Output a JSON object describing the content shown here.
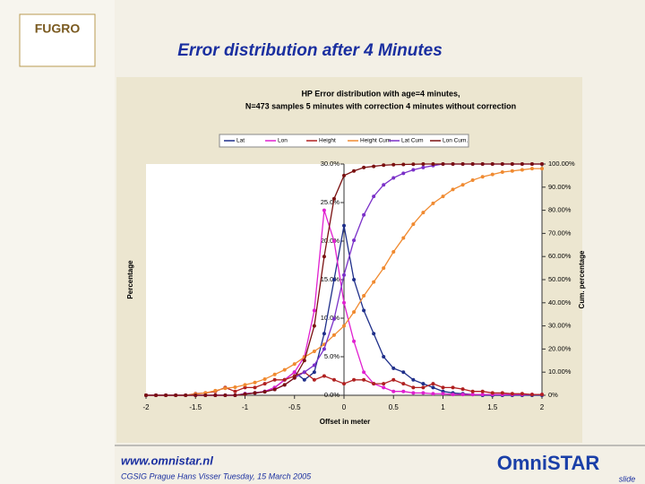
{
  "slide": {
    "title": "Error distribution after 4 Minutes",
    "logo": "FUGRO",
    "brand": "OmniSTAR",
    "url": "www.omnistar.nl",
    "footer": "CGSIG Prague Hans Visser Tuesday, 15 March 2005",
    "slide_label": "slide"
  },
  "chart_data": {
    "type": "line",
    "title": "HP Error distribution with age=4 minutes,",
    "subtitle": "N=473 samples 5 minutes with correction 4 minutes without correction",
    "x_label": "Offset in meter",
    "y_label": "Percentage",
    "y2_label": "Cum. percentage",
    "x": [
      -2,
      -1.9,
      -1.8,
      -1.7,
      -1.6,
      -1.5,
      -1.4,
      -1.3,
      -1.2,
      -1.1,
      -1,
      -0.9,
      -0.8,
      -0.7,
      -0.6,
      -0.5,
      -0.4,
      -0.3,
      -0.2,
      -0.1,
      0,
      0.1,
      0.2,
      0.3,
      0.4,
      0.5,
      0.6,
      0.7,
      0.8,
      0.9,
      1,
      1.1,
      1.2,
      1.3,
      1.4,
      1.5,
      1.6,
      1.7,
      1.8,
      1.9,
      2
    ],
    "xlim": [
      -2,
      2
    ],
    "xticks": [
      -2,
      -1.5,
      -1,
      -0.5,
      0,
      0.5,
      1,
      1.5,
      2
    ],
    "ylim": [
      0,
      30
    ],
    "yticks": [
      {
        "value": 0,
        "label": "0.0%"
      },
      {
        "value": 5,
        "label": "5.0%"
      },
      {
        "value": 10,
        "label": "10.0%"
      },
      {
        "value": 15,
        "label": "15.0%"
      },
      {
        "value": 20,
        "label": "20.0%"
      },
      {
        "value": 25,
        "label": "25.0%"
      },
      {
        "value": 30,
        "label": "30.0%"
      }
    ],
    "y2lim": [
      0,
      100
    ],
    "y2ticks": [
      {
        "value": 0,
        "label": "0%"
      },
      {
        "value": 10,
        "label": "10.00%"
      },
      {
        "value": 20,
        "label": "20.00%"
      },
      {
        "value": 30,
        "label": "30.00%"
      },
      {
        "value": 40,
        "label": "40.00%"
      },
      {
        "value": 50,
        "label": "50.00%"
      },
      {
        "value": 60,
        "label": "60.00%"
      },
      {
        "value": 70,
        "label": "70.00%"
      },
      {
        "value": 80,
        "label": "80.00%"
      },
      {
        "value": 90,
        "label": "90.00%"
      },
      {
        "value": 100,
        "label": "100.00%"
      }
    ],
    "legend": "top",
    "series": [
      {
        "name": "Lat",
        "color": "#1f2f8a",
        "values": [
          0,
          0,
          0,
          0,
          0,
          0,
          0,
          0,
          0,
          0,
          0.2,
          0.3,
          0.5,
          1,
          2,
          3,
          2,
          3,
          8,
          15,
          22,
          15,
          11,
          8,
          5,
          3.5,
          3,
          2,
          1.5,
          1,
          0.5,
          0.3,
          0.2,
          0.1,
          0,
          0,
          0,
          0,
          0,
          0,
          0
        ]
      },
      {
        "name": "Lon",
        "color": "#e020d0",
        "values": [
          0,
          0,
          0,
          0,
          0,
          0,
          0,
          0,
          0,
          0,
          0.2,
          0.3,
          0.5,
          1,
          2,
          3,
          5,
          11,
          24,
          20,
          12,
          7,
          3,
          1.5,
          1,
          0.5,
          0.5,
          0.3,
          0.3,
          0.2,
          0.2,
          0.1,
          0.1,
          0.1,
          0.1,
          0.1,
          0.1,
          0.1,
          0.1,
          0.1,
          0.1
        ]
      },
      {
        "name": "Height",
        "color": "#b02020",
        "values": [
          0,
          0,
          0,
          0,
          0,
          0.2,
          0.3,
          0.5,
          1,
          0.5,
          1,
          1,
          1.5,
          2,
          2,
          2.5,
          3,
          2,
          2.5,
          2,
          1.5,
          2,
          2,
          1.5,
          1.5,
          2,
          1.5,
          1,
          1,
          1.5,
          1,
          1,
          0.8,
          0.5,
          0.5,
          0.3,
          0.3,
          0.2,
          0.2,
          0.1,
          0.1
        ]
      },
      {
        "name": "Height Cum",
        "color": "#f08a30",
        "axis": "y2",
        "values": [
          0,
          0,
          0,
          0,
          0,
          0.5,
          1,
          2,
          3,
          3.5,
          4.5,
          5.5,
          7,
          9,
          11,
          13.5,
          16.5,
          19,
          22,
          26,
          30,
          36,
          43,
          49,
          55,
          62,
          68,
          74,
          79,
          83,
          86,
          89,
          91,
          93,
          94.5,
          95.5,
          96.5,
          97,
          97.5,
          98,
          98
        ]
      },
      {
        "name": "Lat Cum",
        "color": "#7a30c8",
        "axis": "y2",
        "values": [
          0,
          0,
          0,
          0,
          0,
          0,
          0,
          0,
          0,
          0,
          0.5,
          1,
          1.5,
          2.5,
          4.5,
          7.5,
          10,
          13,
          20,
          33,
          52,
          67,
          78,
          86,
          91,
          94,
          96,
          97.5,
          98.5,
          99.3,
          100,
          100,
          100,
          100,
          100,
          100,
          100,
          100,
          100,
          100,
          100
        ]
      },
      {
        "name": "Lon Cum.",
        "color": "#7a1010",
        "axis": "y2",
        "values": [
          0,
          0,
          0,
          0,
          0,
          0,
          0,
          0,
          0,
          0,
          0.5,
          1,
          1.5,
          2.5,
          4.5,
          7.5,
          15,
          30,
          60,
          85,
          95,
          97,
          98.5,
          99,
          99.5,
          99.7,
          99.8,
          99.9,
          100,
          100,
          100,
          100,
          100,
          100,
          100,
          100,
          100,
          100,
          100,
          100,
          100
        ]
      }
    ]
  }
}
